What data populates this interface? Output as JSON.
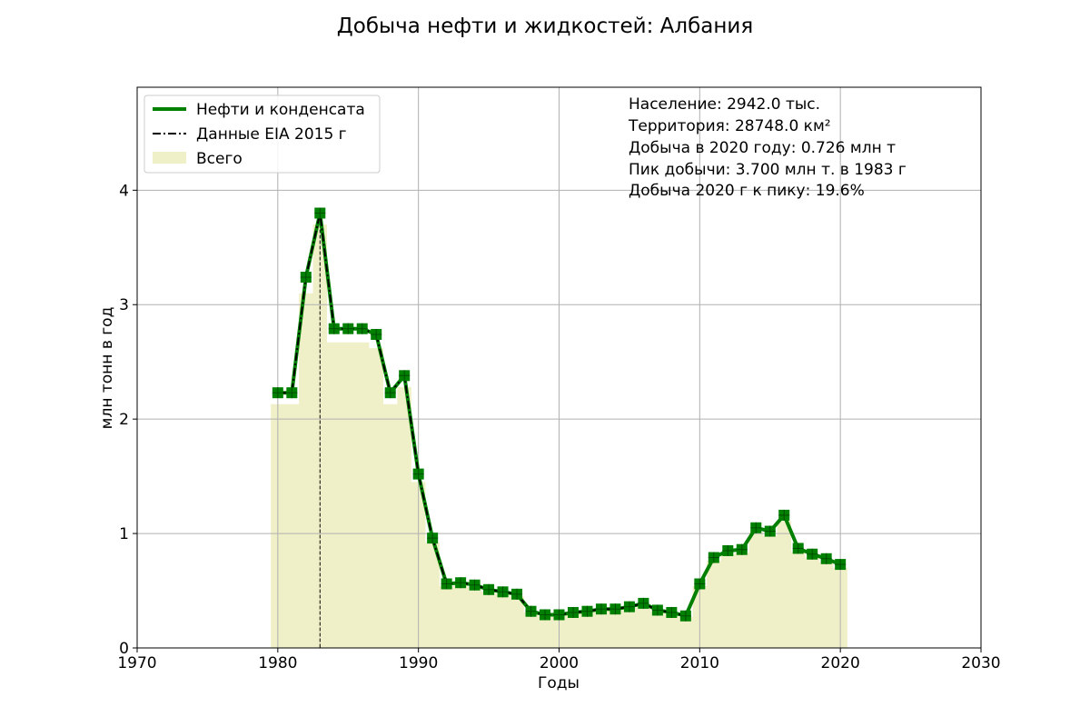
{
  "chart_data": {
    "type": "line",
    "title": "Добыча нефти и жидкостей: Албания",
    "xlabel": "Годы",
    "ylabel": "млн тонн в год",
    "xlim": [
      1970,
      2030
    ],
    "ylim": [
      0,
      4.9
    ],
    "xticks": [
      1970,
      1980,
      1990,
      2000,
      2010,
      2020,
      2030
    ],
    "yticks": [
      0,
      1,
      2,
      3,
      4
    ],
    "grid": true,
    "legend_position": "upper-left",
    "legend": [
      "Нефти и конденсата",
      "Данные EIA 2015 г",
      "Всего"
    ],
    "peak_marker_year": 1983,
    "info_lines": [
      "Население: 2942.0 тыс.",
      "Территория: 28748.0 км²",
      "Добыча в 2020 году: 0.726 млн т",
      "Пик добычи: 3.700 млн т. в 1983 г",
      "Добыча 2020 г к пику: 19.6%"
    ],
    "x": [
      1980,
      1981,
      1982,
      1983,
      1984,
      1985,
      1986,
      1987,
      1988,
      1989,
      1990,
      1991,
      1992,
      1993,
      1994,
      1995,
      1996,
      1997,
      1998,
      1999,
      2000,
      2001,
      2002,
      2003,
      2004,
      2005,
      2006,
      2007,
      2008,
      2009,
      2010,
      2011,
      2012,
      2013,
      2014,
      2015,
      2016,
      2017,
      2018,
      2019,
      2020
    ],
    "series": [
      {
        "name": "Нефти и конденсата",
        "color": "#008000",
        "values": [
          2.23,
          2.23,
          3.24,
          3.8,
          2.79,
          2.79,
          2.79,
          2.74,
          2.23,
          2.38,
          1.52,
          0.96,
          0.56,
          0.57,
          0.55,
          0.51,
          0.49,
          0.47,
          0.32,
          0.29,
          0.29,
          0.31,
          0.32,
          0.34,
          0.34,
          0.36,
          0.39,
          0.33,
          0.31,
          0.28,
          0.56,
          0.79,
          0.85,
          0.86,
          1.05,
          1.02,
          1.16,
          0.87,
          0.82,
          0.78,
          0.73
        ]
      },
      {
        "name": "Данные EIA 2015 г",
        "color": "#000000",
        "x": [
          1980,
          1981,
          1982,
          1983,
          1984,
          1985,
          1986,
          1987,
          1988,
          1989,
          1990,
          1991,
          1992,
          1993,
          1994,
          1995,
          1996,
          1997,
          1998,
          1999,
          2000,
          2001,
          2002,
          2003,
          2004,
          2005,
          2006,
          2007,
          2008,
          2009
        ],
        "values": [
          2.23,
          2.23,
          3.24,
          3.8,
          2.79,
          2.79,
          2.79,
          2.74,
          2.23,
          2.38,
          1.52,
          0.96,
          0.56,
          0.57,
          0.55,
          0.51,
          0.49,
          0.47,
          0.32,
          0.29,
          0.29,
          0.31,
          0.32,
          0.34,
          0.34,
          0.36,
          0.39,
          0.33,
          0.31,
          0.28
        ]
      },
      {
        "name": "Всего",
        "color": "#f0f0c8",
        "values": [
          2.13,
          2.13,
          3.1,
          3.7,
          2.67,
          2.67,
          2.67,
          2.62,
          2.13,
          2.28,
          1.45,
          0.92,
          0.54,
          0.55,
          0.53,
          0.49,
          0.47,
          0.45,
          0.31,
          0.28,
          0.28,
          0.3,
          0.31,
          0.33,
          0.33,
          0.35,
          0.38,
          0.32,
          0.3,
          0.27,
          0.54,
          0.76,
          0.82,
          0.83,
          1.01,
          0.98,
          1.11,
          0.84,
          0.79,
          0.75,
          0.7
        ]
      }
    ]
  }
}
